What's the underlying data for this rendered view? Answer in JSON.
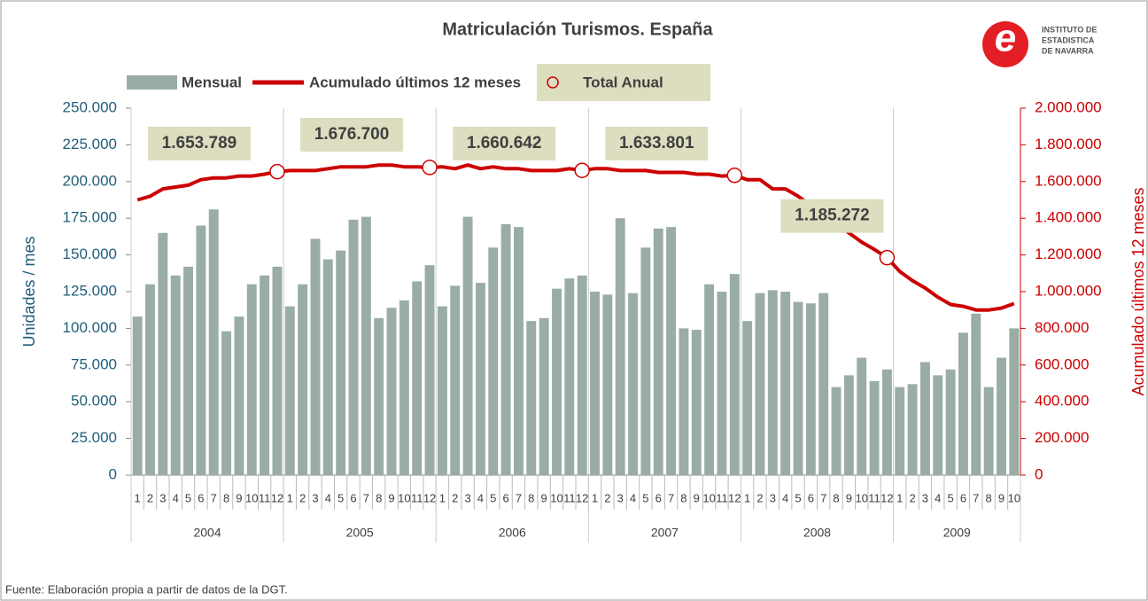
{
  "chart_data": {
    "type": "bar_line",
    "title": "Matriculación Turismos. España",
    "ylabel": "Unidades / mes",
    "y2label": "Acumulado últimos 12 meses",
    "source": "Fuente: Elaboración propia a partir de datos de la DGT.",
    "logo": [
      "INSTITUTO DE",
      "ESTADISTICA",
      "DE NAVARRA"
    ],
    "categories": [
      "1",
      "2",
      "3",
      "4",
      "5",
      "6",
      "7",
      "8",
      "9",
      "10",
      "11",
      "12",
      "1",
      "2",
      "3",
      "4",
      "5",
      "6",
      "7",
      "8",
      "9",
      "10",
      "11",
      "12",
      "1",
      "2",
      "3",
      "4",
      "5",
      "6",
      "7",
      "8",
      "9",
      "10",
      "11",
      "12",
      "1",
      "2",
      "3",
      "4",
      "5",
      "6",
      "7",
      "8",
      "9",
      "10",
      "11",
      "12",
      "1",
      "2",
      "3",
      "4",
      "5",
      "6",
      "7",
      "8",
      "9",
      "10",
      "11",
      "12",
      "1",
      "2",
      "3",
      "4",
      "5",
      "6",
      "7",
      "8",
      "9",
      "10"
    ],
    "years": [
      "2004",
      "2005",
      "2006",
      "2007",
      "2008",
      "2009"
    ],
    "ylim": [
      0,
      250000
    ],
    "yticks": [
      0,
      {
        "value": 25000,
        "label": "25.000"
      },
      {
        "value": 50000,
        "label": "50.000"
      },
      {
        "value": 75000,
        "label": "75.000"
      },
      {
        "value": 100000,
        "label": "100.000"
      },
      {
        "value": 125000,
        "label": "125.000"
      },
      {
        "value": 150000,
        "label": "150.000"
      },
      {
        "value": 175000,
        "label": "175.000"
      },
      {
        "value": 200000,
        "label": "200.000"
      },
      {
        "value": 225000,
        "label": "225.000"
      },
      {
        "value": 250000,
        "label": "250.000"
      }
    ],
    "y2lim": [
      0,
      2000000
    ],
    "y2ticks": [
      0,
      {
        "value": 200000,
        "label": "200.000"
      },
      {
        "value": 400000,
        "label": "400.000"
      },
      {
        "value": 600000,
        "label": "600.000"
      },
      {
        "value": 800000,
        "label": "800.000"
      },
      {
        "value": 1000000,
        "label": "1.000.000"
      },
      {
        "value": 1200000,
        "label": "1.200.000"
      },
      {
        "value": 1400000,
        "label": "1.400.000"
      },
      {
        "value": 1600000,
        "label": "1.600.000"
      },
      {
        "value": 1800000,
        "label": "1.800.000"
      },
      {
        "value": 2000000,
        "label": "2.000.000"
      }
    ],
    "series": [
      {
        "name": "Mensual",
        "kind": "bar",
        "color": "#99ada4",
        "values": [
          108000,
          130000,
          165000,
          136000,
          142000,
          170000,
          181000,
          98000,
          108000,
          130000,
          136000,
          142000,
          115000,
          130000,
          161000,
          147000,
          153000,
          174000,
          176000,
          107000,
          114000,
          119000,
          132000,
          143000,
          115000,
          129000,
          176000,
          131000,
          155000,
          171000,
          169000,
          105000,
          107000,
          127000,
          134000,
          136000,
          125000,
          123000,
          175000,
          124000,
          155000,
          168000,
          169000,
          100000,
          99000,
          130000,
          125000,
          137000,
          105000,
          124000,
          126000,
          125000,
          118000,
          117000,
          124000,
          60000,
          68000,
          80000,
          64000,
          72000,
          60000,
          62000,
          77000,
          68000,
          72000,
          97000,
          110000,
          60000,
          80000,
          100000
        ]
      },
      {
        "name": "Acumulado últimos 12 meses",
        "kind": "line",
        "axis": "y2",
        "color": "#cc0000",
        "values": [
          1500000,
          1520000,
          1560000,
          1570000,
          1580000,
          1610000,
          1620000,
          1620000,
          1630000,
          1630000,
          1640000,
          1653789,
          1660000,
          1660000,
          1660000,
          1670000,
          1680000,
          1680000,
          1680000,
          1690000,
          1690000,
          1680000,
          1680000,
          1676700,
          1680000,
          1670000,
          1690000,
          1670000,
          1680000,
          1670000,
          1670000,
          1660000,
          1660000,
          1660000,
          1670000,
          1660642,
          1670000,
          1670000,
          1660000,
          1660000,
          1660000,
          1650000,
          1650000,
          1650000,
          1640000,
          1640000,
          1630000,
          1633801,
          1610000,
          1610000,
          1560000,
          1560000,
          1520000,
          1470000,
          1410000,
          1370000,
          1320000,
          1270000,
          1230000,
          1185272,
          1110000,
          1060000,
          1020000,
          970000,
          930000,
          920000,
          900000,
          900000,
          910000,
          935000
        ]
      },
      {
        "name": "Total Anual",
        "kind": "point",
        "axis": "y2",
        "color": "#cc0000",
        "values": [
          null,
          null,
          null,
          null,
          null,
          null,
          null,
          null,
          null,
          null,
          null,
          1653789,
          null,
          null,
          null,
          null,
          null,
          null,
          null,
          null,
          null,
          null,
          null,
          1676700,
          null,
          null,
          null,
          null,
          null,
          null,
          null,
          null,
          null,
          null,
          null,
          1660642,
          null,
          null,
          null,
          null,
          null,
          null,
          null,
          null,
          null,
          null,
          null,
          1633801,
          null,
          null,
          null,
          null,
          null,
          null,
          null,
          null,
          null,
          null,
          null,
          1185272,
          null,
          null,
          null,
          null,
          null,
          null,
          null,
          null,
          null,
          null
        ],
        "value_labels": [
          null,
          null,
          null,
          null,
          null,
          null,
          null,
          null,
          null,
          null,
          null,
          "1.653.789",
          null,
          null,
          null,
          null,
          null,
          null,
          null,
          null,
          null,
          null,
          null,
          "1.676.700",
          null,
          null,
          null,
          null,
          null,
          null,
          null,
          null,
          null,
          null,
          null,
          "1.660.642",
          null,
          null,
          null,
          null,
          null,
          null,
          null,
          null,
          null,
          null,
          null,
          "1.633.801",
          null,
          null,
          null,
          null,
          null,
          null,
          null,
          null,
          null,
          null,
          null,
          "1.185.272",
          null,
          null,
          null,
          null,
          null,
          null,
          null,
          null,
          null,
          null
        ]
      }
    ]
  }
}
